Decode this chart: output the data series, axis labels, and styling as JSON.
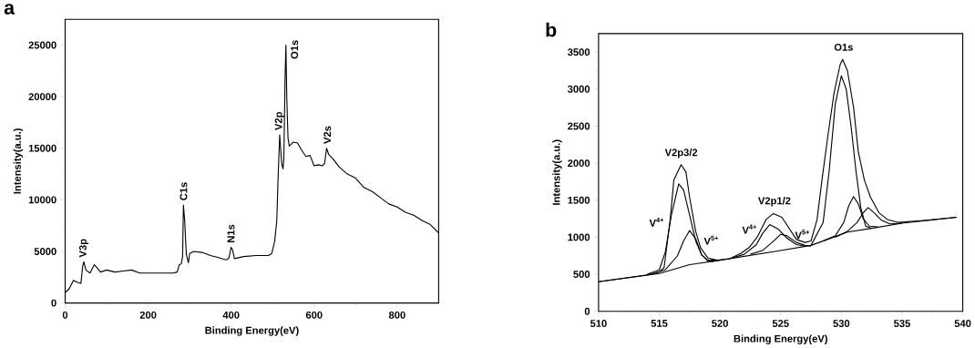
{
  "chart_data": [
    {
      "type": "line",
      "title": "a",
      "xlabel": "Binding Energy(eV)",
      "ylabel": "Intensity(a.u.)",
      "xlim": [
        0,
        900
      ],
      "ylim": [
        0,
        27500
      ],
      "xticks": [
        0,
        200,
        400,
        600,
        800
      ],
      "yticks": [
        0,
        5000,
        10000,
        15000,
        20000,
        25000
      ],
      "series": [
        {
          "color": "#000000",
          "x": [
            0,
            10,
            20,
            30,
            38,
            42,
            45,
            50,
            60,
            70,
            75,
            85,
            100,
            120,
            140,
            160,
            180,
            200,
            220,
            240,
            260,
            270,
            275,
            280,
            283,
            285,
            288,
            292,
            297,
            300,
            310,
            330,
            350,
            370,
            385,
            390,
            395,
            400,
            403,
            408,
            430,
            460,
            490,
            498,
            505,
            510,
            513,
            517,
            520,
            522,
            525,
            527,
            530,
            532,
            534,
            537,
            540,
            550,
            560,
            570,
            580,
            590,
            600,
            610,
            620,
            625,
            630,
            635,
            645,
            660,
            680,
            700,
            720,
            740,
            760,
            780,
            800,
            820,
            840,
            860,
            880,
            900
          ],
          "values": [
            1000,
            1400,
            2200,
            2000,
            1900,
            3500,
            4000,
            3200,
            2900,
            3700,
            3500,
            3000,
            3200,
            3000,
            3100,
            3200,
            2900,
            2900,
            2900,
            2900,
            2900,
            3000,
            3700,
            3800,
            4500,
            9500,
            8000,
            4700,
            3900,
            4800,
            5000,
            4900,
            4600,
            4400,
            4200,
            4200,
            4400,
            5400,
            5200,
            4300,
            4500,
            4600,
            4600,
            4800,
            6000,
            8000,
            12000,
            16300,
            14500,
            13500,
            13000,
            14000,
            22000,
            25000,
            20000,
            16000,
            15200,
            15600,
            15500,
            14800,
            14200,
            14300,
            13300,
            13400,
            13300,
            13500,
            15000,
            14400,
            14000,
            13200,
            12500,
            12100,
            11200,
            10800,
            10200,
            9600,
            9300,
            8800,
            8500,
            8000,
            7600,
            6800
          ]
        }
      ],
      "annotations": [
        "V3p",
        "C1s",
        "N1s",
        "V2p",
        "O1s",
        "V2s"
      ]
    },
    {
      "type": "line",
      "title": "b",
      "xlabel": "Binding Energy(eV)",
      "ylabel": "Intensity(a.u.)",
      "xlim": [
        510,
        540
      ],
      "ylim": [
        0,
        3750
      ],
      "xticks": [
        510,
        515,
        520,
        525,
        530,
        535,
        540
      ],
      "yticks": [
        0,
        500,
        1000,
        1500,
        2000,
        2500,
        3000,
        3500
      ],
      "series": [
        {
          "color": "#000000",
          "x": [
            510,
            515,
            517.5,
            520,
            525,
            527.5,
            529.5,
            530.5,
            532.5,
            535,
            539.5
          ],
          "values": [
            400,
            510,
            630,
            690,
            820,
            890,
            1010,
            1070,
            1120,
            1190,
            1270
          ]
        },
        {
          "color": "#000000",
          "x": [
            510,
            514,
            515,
            515.4,
            515.9,
            516.2,
            516.8,
            517.2,
            517.5,
            518,
            518.4,
            519,
            519.8,
            520.8,
            521.7,
            522.4,
            523.1,
            523.8,
            524.4,
            525.1,
            525.7,
            526.3,
            527,
            527.5,
            528,
            528.4,
            528.9,
            529.4,
            529.9,
            530.1,
            530.5,
            531,
            531.4,
            531.9,
            532.4,
            533.1,
            533.8,
            534.7,
            537,
            539.5
          ],
          "values": [
            400,
            490,
            530,
            590,
            1240,
            1770,
            1980,
            1880,
            1540,
            1080,
            860,
            720,
            690,
            710,
            780,
            860,
            1010,
            1240,
            1320,
            1270,
            1120,
            970,
            930,
            950,
            1240,
            1770,
            2380,
            2950,
            3330,
            3400,
            3250,
            2760,
            2150,
            1770,
            1540,
            1330,
            1240,
            1200,
            1230,
            1270
          ]
        },
        {
          "color": "#000000",
          "x": [
            514,
            515,
            515.5,
            516,
            516.6,
            517,
            517.5,
            518,
            518.5,
            519,
            520
          ],
          "values": [
            500,
            560,
            800,
            1300,
            1720,
            1640,
            1300,
            950,
            760,
            690,
            690
          ]
        },
        {
          "color": "#000000",
          "x": [
            514.5,
            515.5,
            516.5,
            517,
            517.5,
            518,
            518.5,
            519,
            519.5
          ],
          "values": [
            510,
            560,
            750,
            950,
            1090,
            980,
            760,
            680,
            670
          ]
        },
        {
          "color": "#000000",
          "x": [
            521,
            522,
            523,
            523.5,
            524.1,
            524.8,
            525.5,
            526.3,
            527
          ],
          "values": [
            720,
            770,
            900,
            1050,
            1170,
            1110,
            990,
            900,
            880
          ]
        },
        {
          "color": "#000000",
          "x": [
            522.5,
            523.5,
            524.5,
            525,
            525.5,
            526.3,
            527,
            527.5
          ],
          "values": [
            770,
            820,
            960,
            1040,
            1020,
            930,
            890,
            880
          ]
        },
        {
          "color": "#000000",
          "x": [
            527.5,
            528.5,
            529,
            529.5,
            530,
            530.4,
            530.8,
            531.2,
            531.6,
            532,
            532.5
          ],
          "values": [
            890,
            1200,
            1900,
            2800,
            3180,
            3000,
            2500,
            1900,
            1400,
            1150,
            1120
          ]
        },
        {
          "color": "#000000",
          "x": [
            528.5,
            529.5,
            530.2,
            530.6,
            531,
            531.4,
            531.8,
            532.3,
            533
          ],
          "values": [
            950,
            1020,
            1200,
            1420,
            1550,
            1450,
            1250,
            1150,
            1140
          ]
        },
        {
          "color": "#000000",
          "x": [
            529.5,
            530.5,
            531.3,
            531.8,
            532.2,
            532.7,
            533.3,
            534,
            535
          ],
          "values": [
            1000,
            1080,
            1200,
            1330,
            1400,
            1330,
            1230,
            1180,
            1190
          ]
        }
      ],
      "annotations": [
        "V2p3/2",
        "V$^{4+}$",
        "V$^{5+}$",
        "V2p1/2",
        "V$^{4+}$",
        "V$^{5+}$",
        "O1s"
      ]
    }
  ]
}
